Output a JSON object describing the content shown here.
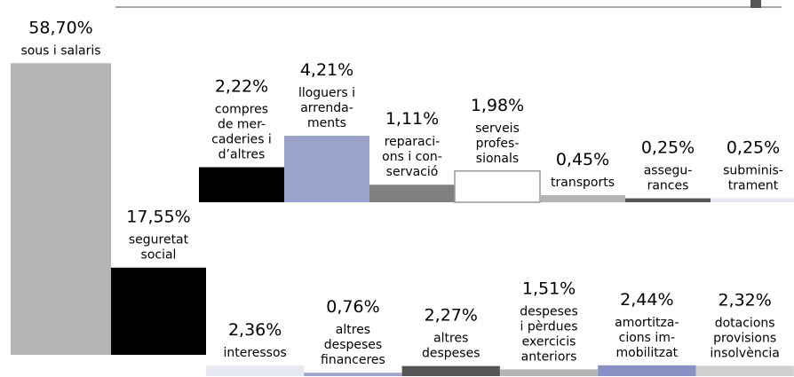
{
  "chart_data": {
    "type": "bar",
    "categories": [
      "sous i salaris",
      "seguretat\nsocial",
      "compres\nde mer-\ncaderies i\nd’altres",
      "lloguers i\narrenda-\nments",
      "reparaci-\nons i con-\nservació",
      "serveis\nprofes-\nsionals",
      "transports",
      "assegu-\nrances",
      "subminis-\ntrament",
      "interessos",
      "altres\ndespeses\nfinanceres",
      "altres\ndespeses",
      "despeses\ni pèrdues\nexercicis\nanteriors",
      "amortitza-\ncions im-\nmobilitzat",
      "dotacions\nprovisions\ninsolvència"
    ],
    "values": [
      58.7,
      17.55,
      2.22,
      4.21,
      1.11,
      1.98,
      0.45,
      0.25,
      0.25,
      2.36,
      0.76,
      2.27,
      1.51,
      2.44,
      2.32
    ],
    "value_labels": [
      "58,70%",
      "17,55%",
      "2,22%",
      "4,21%",
      "1,11%",
      "1,98%",
      "0,45%",
      "0,25%",
      "0,25%",
      "2,36%",
      "0,76%",
      "2,27%",
      "1,51%",
      "2,44%",
      "2,32%"
    ],
    "colors": [
      "#b4b4b4",
      "#000000",
      "#000000",
      "#9aa3cc",
      "#808080",
      "#ffffff",
      "#b4b4b4",
      "#555555",
      "#e6e8f4",
      "#e6e8f4",
      "#9aa3cc",
      "#555555",
      "#b4b4b4",
      "#8890c4",
      "#d0d0d0"
    ]
  }
}
